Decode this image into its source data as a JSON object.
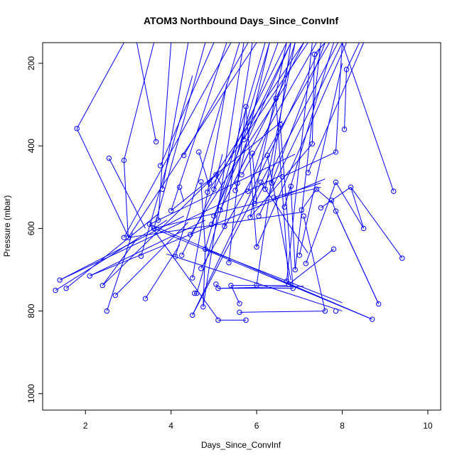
{
  "chart_data": {
    "type": "scatter",
    "title": "ATOM3 Northbound Days_Since_ConvInf",
    "xlabel": "Days_Since_ConvInf",
    "ylabel": "Pressure (mbar)",
    "xlim": [
      1,
      10.3
    ],
    "ylim": [
      1040,
      150
    ],
    "y_reversed": true,
    "x_ticks": [
      2,
      4,
      6,
      8,
      10
    ],
    "y_ticks": [
      200,
      400,
      600,
      800,
      1000
    ],
    "series_color": "#0000ff",
    "grid": false,
    "points": [
      [
        1.3,
        750
      ],
      [
        1.4,
        725
      ],
      [
        1.55,
        745
      ],
      [
        2.1,
        715
      ],
      [
        2.4,
        738
      ],
      [
        2.5,
        800
      ],
      [
        2.7,
        762
      ],
      [
        3.4,
        770
      ],
      [
        1.8,
        358
      ],
      [
        2.55,
        430
      ],
      [
        2.9,
        435
      ],
      [
        2.9,
        622
      ],
      [
        3.0,
        622
      ],
      [
        3.3,
        667
      ],
      [
        3.5,
        590
      ],
      [
        3.6,
        600
      ],
      [
        3.7,
        580
      ],
      [
        3.8,
        505
      ],
      [
        3.75,
        448
      ],
      [
        3.65,
        390
      ],
      [
        4.0,
        557
      ],
      [
        4.1,
        668
      ],
      [
        4.2,
        500
      ],
      [
        4.25,
        665
      ],
      [
        4.3,
        423
      ],
      [
        4.45,
        615
      ],
      [
        4.5,
        720
      ],
      [
        4.5,
        810
      ],
      [
        4.55,
        757
      ],
      [
        4.6,
        757
      ],
      [
        4.65,
        415
      ],
      [
        4.7,
        487
      ],
      [
        4.7,
        697
      ],
      [
        4.75,
        790
      ],
      [
        4.8,
        650
      ],
      [
        4.85,
        512
      ],
      [
        4.9,
        490
      ],
      [
        4.95,
        590
      ],
      [
        5.0,
        570
      ],
      [
        5.0,
        505
      ],
      [
        5.05,
        470
      ],
      [
        5.05,
        735
      ],
      [
        5.1,
        822
      ],
      [
        5.1,
        745
      ],
      [
        5.15,
        555
      ],
      [
        5.25,
        595
      ],
      [
        5.35,
        683
      ],
      [
        5.4,
        738
      ],
      [
        5.5,
        508
      ],
      [
        5.55,
        490
      ],
      [
        5.6,
        803
      ],
      [
        5.6,
        782
      ],
      [
        5.65,
        470
      ],
      [
        5.7,
        385
      ],
      [
        5.75,
        822
      ],
      [
        5.75,
        305
      ],
      [
        5.8,
        510
      ],
      [
        5.85,
        573
      ],
      [
        5.9,
        418
      ],
      [
        5.95,
        540
      ],
      [
        6.0,
        645
      ],
      [
        6.0,
        737
      ],
      [
        6.05,
        570
      ],
      [
        6.1,
        488
      ],
      [
        6.2,
        505
      ],
      [
        6.25,
        423
      ],
      [
        6.35,
        490
      ],
      [
        6.4,
        525
      ],
      [
        6.45,
        285
      ],
      [
        6.55,
        348
      ],
      [
        6.6,
        475
      ],
      [
        6.65,
        548
      ],
      [
        6.7,
        728
      ],
      [
        6.75,
        735
      ],
      [
        6.8,
        498
      ],
      [
        6.85,
        745
      ],
      [
        6.9,
        700
      ],
      [
        7.0,
        665
      ],
      [
        7.05,
        555
      ],
      [
        7.1,
        570
      ],
      [
        7.15,
        685
      ],
      [
        7.2,
        465
      ],
      [
        7.3,
        395
      ],
      [
        7.35,
        178
      ],
      [
        7.4,
        505
      ],
      [
        7.5,
        550
      ],
      [
        7.6,
        800
      ],
      [
        7.75,
        532
      ],
      [
        7.8,
        650
      ],
      [
        7.85,
        558
      ],
      [
        7.85,
        488
      ],
      [
        7.85,
        415
      ],
      [
        7.85,
        800
      ],
      [
        8.05,
        360
      ],
      [
        8.1,
        215
      ],
      [
        8.2,
        500
      ],
      [
        8.5,
        600
      ],
      [
        8.7,
        820
      ],
      [
        8.85,
        783
      ],
      [
        9.2,
        510
      ],
      [
        9.4,
        672
      ]
    ],
    "segments": [
      [
        1.4,
        725,
        4.3,
        570
      ],
      [
        1.3,
        750,
        3.9,
        580
      ],
      [
        1.55,
        745,
        3.7,
        565
      ],
      [
        2.1,
        715,
        4.8,
        580
      ],
      [
        2.4,
        738,
        3.2,
        625
      ],
      [
        2.5,
        800,
        3.1,
        610
      ],
      [
        2.7,
        762,
        4.4,
        585
      ],
      [
        3.4,
        770,
        4.2,
        640
      ],
      [
        1.8,
        358,
        3.0,
        620
      ],
      [
        1.8,
        358,
        2.9,
        150
      ],
      [
        2.55,
        430,
        3.4,
        600
      ],
      [
        2.9,
        435,
        3.0,
        622
      ],
      [
        2.9,
        435,
        3.6,
        150
      ],
      [
        2.9,
        622,
        5.4,
        150
      ],
      [
        3.0,
        622,
        6.0,
        150
      ],
      [
        3.3,
        667,
        4.5,
        230
      ],
      [
        3.5,
        590,
        5.1,
        820
      ],
      [
        3.5,
        590,
        6.9,
        420
      ],
      [
        3.6,
        600,
        4.8,
        150
      ],
      [
        3.6,
        600,
        7.5,
        500
      ],
      [
        3.6,
        600,
        8.7,
        820
      ],
      [
        3.7,
        580,
        4.0,
        150
      ],
      [
        3.8,
        505,
        4.4,
        150
      ],
      [
        3.75,
        448,
        5.0,
        150
      ],
      [
        3.65,
        390,
        3.2,
        150
      ],
      [
        4.0,
        557,
        5.3,
        150
      ],
      [
        4.0,
        557,
        6.6,
        340
      ],
      [
        4.1,
        668,
        5.6,
        150
      ],
      [
        4.2,
        500,
        4.3,
        535
      ],
      [
        4.25,
        665,
        6.7,
        150
      ],
      [
        4.3,
        423,
        5.8,
        150
      ],
      [
        4.45,
        615,
        6.7,
        250
      ],
      [
        4.5,
        720,
        5.3,
        250
      ],
      [
        4.5,
        810,
        7.5,
        160
      ],
      [
        4.55,
        757,
        4.6,
        757
      ],
      [
        4.6,
        757,
        6.3,
        150
      ],
      [
        4.65,
        415,
        4.9,
        500
      ],
      [
        4.7,
        487,
        4.8,
        650
      ],
      [
        4.7,
        697,
        7.7,
        150
      ],
      [
        4.75,
        790,
        4.8,
        650
      ],
      [
        4.75,
        790,
        5.7,
        150
      ],
      [
        4.8,
        650,
        6.2,
        150
      ],
      [
        4.85,
        512,
        7.2,
        150
      ],
      [
        4.9,
        490,
        7.1,
        150
      ],
      [
        4.95,
        590,
        6.5,
        150
      ],
      [
        5.0,
        570,
        6.8,
        150
      ],
      [
        5.0,
        505,
        5.2,
        420
      ],
      [
        5.05,
        470,
        5.2,
        500
      ],
      [
        5.05,
        735,
        5.1,
        745
      ],
      [
        5.1,
        822,
        5.75,
        822
      ],
      [
        5.1,
        745,
        6.85,
        745
      ],
      [
        5.1,
        745,
        7.1,
        740
      ],
      [
        5.15,
        555,
        5.8,
        420
      ],
      [
        5.15,
        555,
        7.1,
        150
      ],
      [
        5.25,
        595,
        5.9,
        150
      ],
      [
        5.35,
        683,
        5.75,
        305
      ],
      [
        5.4,
        738,
        6.7,
        738
      ],
      [
        5.5,
        508,
        5.6,
        470
      ],
      [
        5.55,
        490,
        6.3,
        150
      ],
      [
        5.6,
        803,
        7.6,
        800
      ],
      [
        5.6,
        782,
        5.4,
        738
      ],
      [
        5.65,
        470,
        7.4,
        150
      ],
      [
        5.7,
        385,
        6.8,
        150
      ],
      [
        5.75,
        305,
        6.0,
        645
      ],
      [
        5.8,
        510,
        6.9,
        150
      ],
      [
        5.85,
        573,
        7.3,
        395
      ],
      [
        5.9,
        418,
        6.0,
        540
      ],
      [
        5.95,
        540,
        7.9,
        150
      ],
      [
        6.0,
        645,
        8.1,
        150
      ],
      [
        6.05,
        570,
        8.0,
        150
      ],
      [
        6.1,
        488,
        7.2,
        660
      ],
      [
        6.2,
        505,
        6.9,
        150
      ],
      [
        6.25,
        423,
        6.8,
        725
      ],
      [
        6.35,
        490,
        7.6,
        150
      ],
      [
        6.4,
        525,
        7.5,
        490
      ],
      [
        6.45,
        285,
        6.75,
        735
      ],
      [
        6.55,
        348,
        6.85,
        745
      ],
      [
        6.6,
        475,
        7.85,
        415
      ],
      [
        6.65,
        548,
        7.8,
        150
      ],
      [
        6.7,
        728,
        7.3,
        150
      ],
      [
        6.75,
        735,
        7.8,
        650
      ],
      [
        6.8,
        498,
        6.9,
        700
      ],
      [
        6.9,
        700,
        7.5,
        150
      ],
      [
        7.0,
        665,
        8.0,
        200
      ],
      [
        7.05,
        555,
        7.4,
        505
      ],
      [
        7.1,
        570,
        7.6,
        800
      ],
      [
        7.15,
        685,
        7.85,
        488
      ],
      [
        7.2,
        465,
        8.5,
        150
      ],
      [
        7.3,
        395,
        7.35,
        178
      ],
      [
        7.35,
        178,
        7.6,
        150
      ],
      [
        7.4,
        505,
        7.8,
        540
      ],
      [
        7.5,
        550,
        8.2,
        500
      ],
      [
        7.75,
        532,
        7.85,
        558
      ],
      [
        7.85,
        558,
        8.85,
        783
      ],
      [
        7.85,
        488,
        8.5,
        600
      ],
      [
        7.85,
        415,
        8.0,
        150
      ],
      [
        8.05,
        360,
        8.1,
        215
      ],
      [
        8.1,
        215,
        8.4,
        150
      ],
      [
        8.2,
        500,
        8.5,
        600
      ],
      [
        8.7,
        820,
        3.5,
        590
      ],
      [
        8.85,
        783,
        7.85,
        558
      ],
      [
        9.2,
        510,
        8.0,
        150
      ],
      [
        9.4,
        672,
        8.2,
        500
      ],
      [
        2.1,
        715,
        7.6,
        480
      ],
      [
        1.4,
        725,
        6.6,
        470
      ],
      [
        3.0,
        622,
        7.1,
        560
      ],
      [
        4.8,
        650,
        8.0,
        780
      ],
      [
        3.9,
        662,
        8.0,
        800
      ],
      [
        4.5,
        810,
        6.3,
        450
      ],
      [
        2.4,
        738,
        5.05,
        470
      ],
      [
        6.0,
        737,
        6.8,
        150
      ],
      [
        5.85,
        573,
        6.7,
        150
      ]
    ]
  }
}
